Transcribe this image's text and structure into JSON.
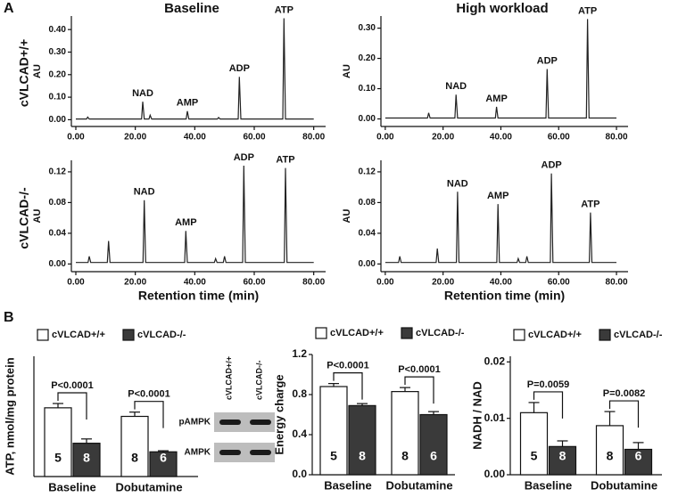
{
  "figure": {
    "panels": [
      "A",
      "B"
    ],
    "columns": [
      "Baseline",
      "High workload"
    ],
    "rows": [
      "cVLCAD+/+",
      "cVLCAD-/-"
    ]
  },
  "chart_data": [
    {
      "type": "line",
      "ylabel": "AU",
      "color": "#222222",
      "x": [
        0,
        3.6,
        4,
        4.5,
        22.1,
        22.5,
        23,
        24.6,
        25,
        25.5,
        37.1,
        37.5,
        38,
        47.6,
        48,
        48.5,
        54.6,
        55,
        55.5,
        69.6,
        70,
        70.5,
        80
      ],
      "values": [
        0.003,
        0.003,
        0.012,
        0.003,
        0.003,
        0.08,
        0.003,
        0.003,
        0.02,
        0.003,
        0.003,
        0.038,
        0.003,
        0.003,
        0.01,
        0.003,
        0.003,
        0.19,
        0.003,
        0.003,
        0.45,
        0.003,
        0.003
      ],
      "annotations": [
        {
          "text": "NAD",
          "x": 22.5,
          "y": 0.08
        },
        {
          "text": "AMP",
          "x": 37.5,
          "y": 0.038
        },
        {
          "text": "ADP",
          "x": 55,
          "y": 0.19
        },
        {
          "text": "ATP",
          "x": 70,
          "y": 0.45
        }
      ],
      "xlim": [
        -1.5,
        84
      ],
      "ylim": [
        -0.03,
        0.46
      ],
      "xticks": [
        {
          "value": 0,
          "label": "0.00"
        },
        {
          "value": 20,
          "label": "20.00"
        },
        {
          "value": 40,
          "label": "40.00"
        },
        {
          "value": 60,
          "label": "60.00"
        },
        {
          "value": 80,
          "label": "80.00"
        }
      ],
      "yticks": [
        {
          "value": 0,
          "label": "0.00"
        },
        {
          "value": 0.1,
          "label": "0.10"
        },
        {
          "value": 0.2,
          "label": "0.20"
        },
        {
          "value": 0.3,
          "label": "0.30"
        },
        {
          "value": 0.4,
          "label": "0.40"
        }
      ]
    },
    {
      "type": "line",
      "ylabel": "AU",
      "color": "#222222",
      "x": [
        0,
        14.6,
        15,
        15.5,
        24.1,
        24.5,
        25,
        38.1,
        38.5,
        39,
        55.6,
        56,
        56.5,
        69.6,
        70,
        70.5,
        80
      ],
      "values": [
        0.003,
        0.003,
        0.02,
        0.003,
        0.003,
        0.08,
        0.003,
        0.003,
        0.04,
        0.003,
        0.003,
        0.165,
        0.003,
        0.003,
        0.33,
        0.003,
        0.003
      ],
      "annotations": [
        {
          "text": "NAD",
          "x": 24.5,
          "y": 0.08
        },
        {
          "text": "AMP",
          "x": 38.5,
          "y": 0.04
        },
        {
          "text": "ADP",
          "x": 56,
          "y": 0.165
        },
        {
          "text": "ATP",
          "x": 70,
          "y": 0.33
        }
      ],
      "xlim": [
        -1.5,
        84
      ],
      "ylim": [
        -0.025,
        0.34
      ],
      "xticks": [
        {
          "value": 0,
          "label": "0.00"
        },
        {
          "value": 20,
          "label": "20.00"
        },
        {
          "value": 40,
          "label": "40.00"
        },
        {
          "value": 60,
          "label": "60.00"
        },
        {
          "value": 80,
          "label": "80.00"
        }
      ],
      "yticks": [
        {
          "value": 0,
          "label": "0.00"
        },
        {
          "value": 0.1,
          "label": "0.10"
        },
        {
          "value": 0.2,
          "label": "0.20"
        },
        {
          "value": 0.3,
          "label": "0.30"
        }
      ]
    },
    {
      "type": "line",
      "ylabel": "AU",
      "xlabel": "Retention time (min)",
      "color": "#222222",
      "x": [
        0,
        4.1,
        4.5,
        5,
        10.6,
        11,
        11.5,
        22.6,
        23,
        23.5,
        36.6,
        37,
        37.5,
        46.6,
        47,
        47.5,
        49.6,
        50,
        50.5,
        56.1,
        56.5,
        57,
        70.1,
        70.5,
        71,
        80
      ],
      "values": [
        0.002,
        0.002,
        0.01,
        0.002,
        0.002,
        0.03,
        0.002,
        0.002,
        0.083,
        0.002,
        0.002,
        0.043,
        0.002,
        0.002,
        0.007,
        0.002,
        0.002,
        0.01,
        0.002,
        0.002,
        0.128,
        0.002,
        0.002,
        0.125,
        0.002,
        0.002
      ],
      "annotations": [
        {
          "text": "NAD",
          "x": 23,
          "y": 0.083
        },
        {
          "text": "AMP",
          "x": 37,
          "y": 0.043
        },
        {
          "text": "ADP",
          "x": 56.5,
          "y": 0.128
        },
        {
          "text": "ATP",
          "x": 70.5,
          "y": 0.125
        }
      ],
      "xlim": [
        -1.5,
        84
      ],
      "ylim": [
        -0.01,
        0.135
      ],
      "xticks": [
        {
          "value": 0,
          "label": "0.00"
        },
        {
          "value": 20,
          "label": "20.00"
        },
        {
          "value": 40,
          "label": "40.00"
        },
        {
          "value": 60,
          "label": "60.00"
        },
        {
          "value": 80,
          "label": "80.00"
        }
      ],
      "yticks": [
        {
          "value": 0,
          "label": "0.00"
        },
        {
          "value": 0.04,
          "label": "0.04"
        },
        {
          "value": 0.08,
          "label": "0.08"
        },
        {
          "value": 0.12,
          "label": "0.12"
        }
      ]
    },
    {
      "type": "line",
      "ylabel": "AU",
      "xlabel": "Retention time (min)",
      "color": "#222222",
      "x": [
        0,
        4.6,
        5,
        5.5,
        17.6,
        18,
        18.5,
        24.6,
        25,
        25.5,
        38.6,
        39,
        39.5,
        45.6,
        46,
        46.5,
        48.6,
        49,
        49.5,
        57.1,
        57.5,
        58,
        70.6,
        71,
        71.5,
        80
      ],
      "values": [
        0.002,
        0.002,
        0.01,
        0.002,
        0.002,
        0.02,
        0.002,
        0.002,
        0.094,
        0.002,
        0.002,
        0.078,
        0.002,
        0.002,
        0.007,
        0.002,
        0.002,
        0.01,
        0.002,
        0.002,
        0.118,
        0.002,
        0.002,
        0.067,
        0.002,
        0.002
      ],
      "annotations": [
        {
          "text": "NAD",
          "x": 25,
          "y": 0.094
        },
        {
          "text": "AMP",
          "x": 39,
          "y": 0.078
        },
        {
          "text": "ADP",
          "x": 57.5,
          "y": 0.118
        },
        {
          "text": "ATP",
          "x": 71,
          "y": 0.067
        }
      ],
      "xlim": [
        -1.5,
        84
      ],
      "ylim": [
        -0.01,
        0.135
      ],
      "xticks": [
        {
          "value": 0,
          "label": "0.00"
        },
        {
          "value": 20,
          "label": "20.00"
        },
        {
          "value": 40,
          "label": "40.00"
        },
        {
          "value": 60,
          "label": "60.00"
        },
        {
          "value": 80,
          "label": "80.00"
        }
      ],
      "yticks": [
        {
          "value": 0,
          "label": "0.00"
        },
        {
          "value": 0.04,
          "label": "0.04"
        },
        {
          "value": 0.08,
          "label": "0.08"
        },
        {
          "value": 0.12,
          "label": "0.12"
        }
      ]
    },
    {
      "type": "bar",
      "ylabel": "ATP, nmol/mg protein",
      "categories": [
        "Baseline",
        "Dobutamine"
      ],
      "ylim": [
        0,
        56
      ],
      "series": [
        {
          "name": "cVLCAD+/+",
          "color": "#ffffff",
          "values": [
            32,
            28
          ],
          "errors": [
            2,
            2
          ],
          "n": [
            5,
            8
          ]
        },
        {
          "name": "cVLCAD-/-",
          "color": "#3a3a3a",
          "values": [
            15.5,
            11.5
          ],
          "errors": [
            2,
            0.5
          ],
          "n": [
            8,
            6
          ]
        }
      ],
      "pvalues": [
        "P<0.0001",
        "P<0.0001"
      ],
      "blot": {
        "lanes": [
          "cVLCAD+/+",
          "cVLCAD-/-"
        ],
        "rows": [
          "pAMPK",
          "AMPK"
        ]
      }
    },
    {
      "type": "bar",
      "ylabel": "Energy charge",
      "categories": [
        "Baseline",
        "Dobutamine"
      ],
      "ylim": [
        0,
        1.2
      ],
      "yticks": [
        {
          "value": 0,
          "label": "0.0"
        },
        {
          "value": 0.4,
          "label": "0.4"
        },
        {
          "value": 0.8,
          "label": "0.8"
        },
        {
          "value": 1.2,
          "label": "1.2"
        }
      ],
      "series": [
        {
          "name": "cVLCAD+/+",
          "color": "#ffffff",
          "values": [
            0.88,
            0.83
          ],
          "errors": [
            0.03,
            0.04
          ],
          "n": [
            5,
            8
          ]
        },
        {
          "name": "cVLCAD-/-",
          "color": "#3a3a3a",
          "values": [
            0.69,
            0.6
          ],
          "errors": [
            0.02,
            0.03
          ],
          "n": [
            8,
            6
          ]
        }
      ],
      "pvalues": [
        "P<0.0001",
        "P<0.0001"
      ]
    },
    {
      "type": "bar",
      "ylabel": "NADH / NAD",
      "categories": [
        "Baseline",
        "Dobutamine"
      ],
      "ylim": [
        0,
        0.021
      ],
      "yticks": [
        {
          "value": 0,
          "label": "0.00"
        },
        {
          "value": 0.01,
          "label": "0.01"
        },
        {
          "value": 0.02,
          "label": "0.02"
        }
      ],
      "series": [
        {
          "name": "cVLCAD+/+",
          "color": "#ffffff",
          "values": [
            0.011,
            0.0087
          ],
          "errors": [
            0.0018,
            0.0025
          ],
          "n": [
            5,
            8
          ]
        },
        {
          "name": "cVLCAD-/-",
          "color": "#3a3a3a",
          "values": [
            0.005,
            0.0045
          ],
          "errors": [
            0.001,
            0.0012
          ],
          "n": [
            8,
            6
          ]
        }
      ],
      "pvalues": [
        "P=0.0059",
        "P=0.0082"
      ]
    }
  ]
}
